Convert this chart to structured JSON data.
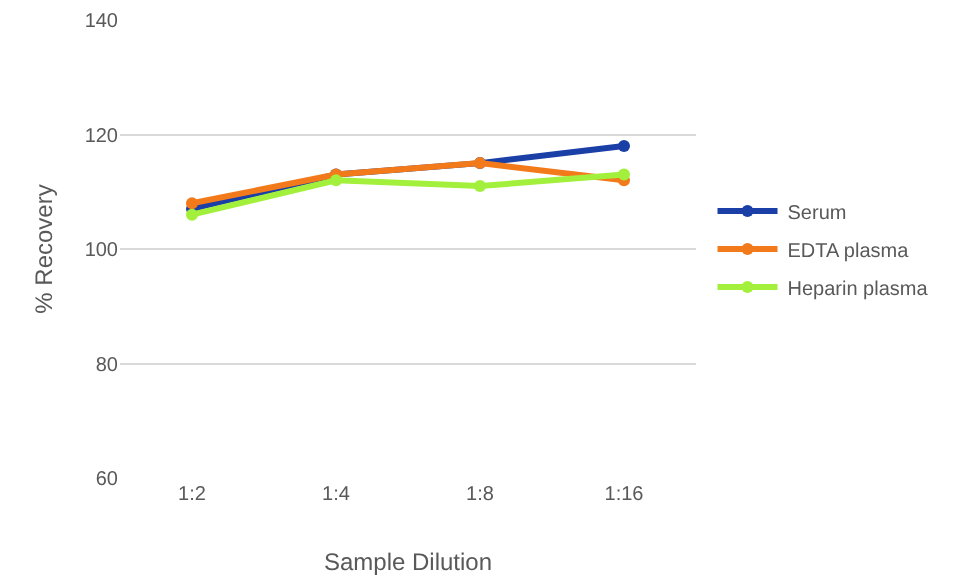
{
  "chart_data": {
    "type": "line",
    "xlabel": "Sample Dilution",
    "ylabel": "% Recovery",
    "categories": [
      "1:2",
      "1:4",
      "1:8",
      "1:16"
    ],
    "series": [
      {
        "name": "Serum",
        "color": "#1a3fa6",
        "values": [
          107,
          113,
          115,
          118
        ]
      },
      {
        "name": "EDTA plasma",
        "color": "#f27a1a",
        "values": [
          108,
          113,
          115,
          112
        ]
      },
      {
        "name": "Heparin plasma",
        "color": "#a3f03c",
        "values": [
          106,
          112,
          111,
          113
        ]
      }
    ],
    "ylim": [
      60,
      140
    ],
    "yticks": [
      60,
      80,
      100,
      120,
      140
    ],
    "grid": "y",
    "legend": "right",
    "marker": "circle",
    "line_style": "solid"
  }
}
